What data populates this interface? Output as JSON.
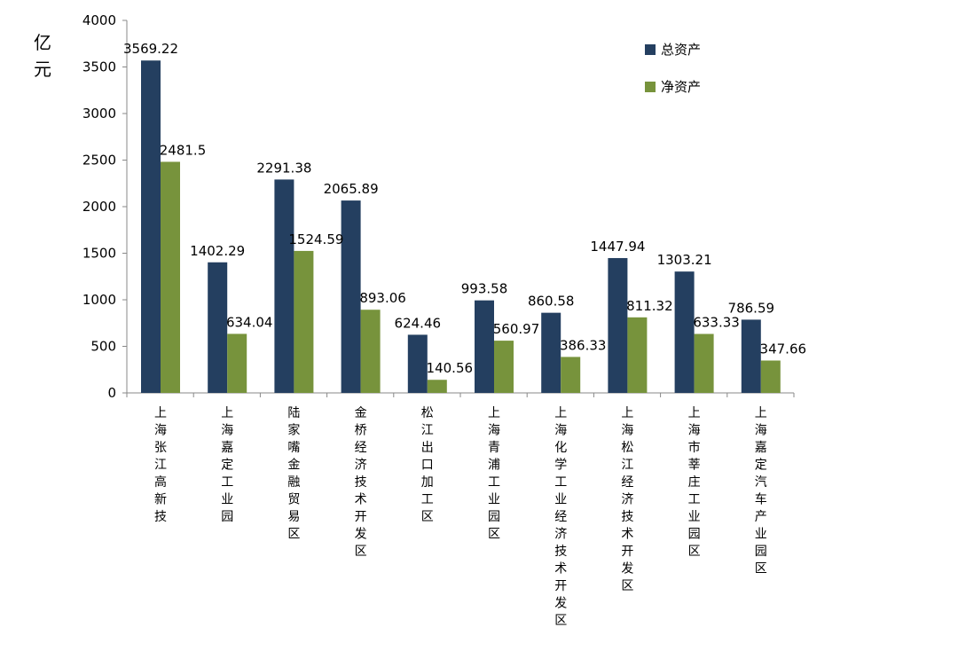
{
  "chart_data": {
    "type": "bar",
    "ylabel": "亿元",
    "ylim": [
      0,
      4000
    ],
    "yticks": [
      0,
      500,
      1000,
      1500,
      2000,
      2500,
      3000,
      3500,
      4000
    ],
    "categories": [
      "上海张江高新技",
      "上海嘉定工业园",
      "陆家嘴金融贸易区",
      "金桥经济技术开发区",
      "松江出口加工区",
      "上海青浦工业园区",
      "上海化学工业经济技术开发区",
      "上海松江经济技术开发区",
      "上海市莘庄工业园区",
      "上海嘉定汽车产业园区"
    ],
    "series": [
      {
        "name": "总资产",
        "color": "#243f60",
        "values": [
          3569.22,
          1402.29,
          2291.38,
          2065.89,
          624.46,
          993.58,
          860.58,
          1447.94,
          1303.21,
          786.59
        ],
        "labels": [
          "3569.22",
          "1402.29",
          "2291.38",
          "2065.89",
          "624.46",
          "993.58",
          "860.58",
          "1447.94",
          "1303.21",
          "786.59"
        ]
      },
      {
        "name": "净资产",
        "color": "#77933c",
        "values": [
          2481.5,
          634.04,
          1524.59,
          893.06,
          140.56,
          560.97,
          386.33,
          811.32,
          633.33,
          347.66
        ],
        "labels": [
          "2481.5",
          "634.04",
          "1524.59",
          "893.06",
          "140.56",
          "560.97",
          "386.33",
          "811.32",
          "633.33",
          "347.66"
        ]
      }
    ],
    "legend_position": "top-right",
    "grid": false
  }
}
